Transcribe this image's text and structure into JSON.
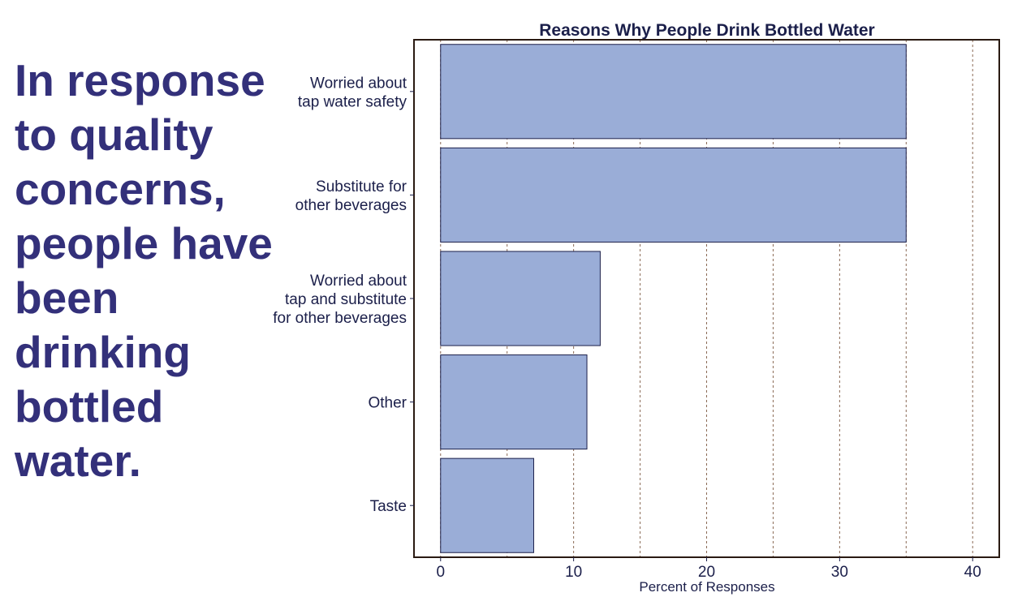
{
  "slide": {
    "headline_lines": [
      "In response",
      "to quality",
      "concerns,",
      "people have",
      "been",
      "drinking",
      "bottled",
      "water."
    ]
  },
  "colors": {
    "headline": "#33307a",
    "bar_fill": "#9aadd7",
    "bar_stroke": "#1b1f4a",
    "axis_text": "#1b1f4a",
    "gridline": "#8a6a55"
  },
  "chart_data": {
    "type": "bar",
    "orientation": "horizontal",
    "title": "Reasons Why People Drink Bottled Water",
    "xlabel": "Percent of Responses",
    "ylabel": "",
    "categories": [
      [
        "Worried about",
        "tap water safety"
      ],
      [
        "Substitute for",
        "other beverages"
      ],
      [
        "Worried about",
        "tap and substitute",
        "for other beverages"
      ],
      [
        "Other"
      ],
      [
        "Taste"
      ]
    ],
    "values": [
      35,
      35,
      12,
      11,
      7
    ],
    "xlim": [
      -2,
      42
    ],
    "xticks": [
      0,
      10,
      20,
      30,
      40
    ],
    "gridlines": [
      0,
      5,
      10,
      15,
      20,
      25,
      30,
      35,
      40
    ],
    "grid": true,
    "legend": "none"
  }
}
